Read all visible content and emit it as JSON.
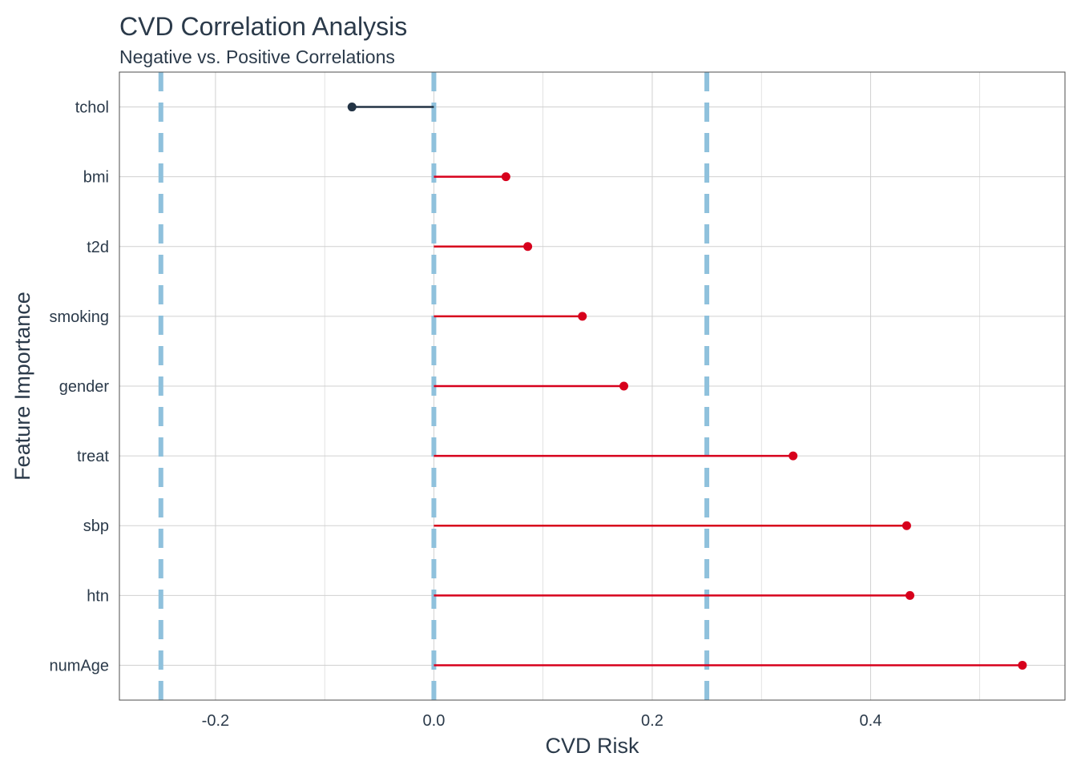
{
  "chart_data": {
    "type": "lollipop",
    "title": "CVD Correlation Analysis",
    "subtitle": "Negative vs. Positive Correlations",
    "xlabel": "CVD Risk",
    "ylabel": "Feature Importance",
    "xlim": [
      -0.288,
      0.578
    ],
    "x_ticks": [
      -0.2,
      0.0,
      0.2,
      0.4
    ],
    "x_tick_labels": [
      "-0.2",
      "0.0",
      "0.2",
      "0.4"
    ],
    "reference_lines": [
      -0.25,
      0.0,
      0.25
    ],
    "grid": true,
    "categories": [
      "tchol",
      "bmi",
      "t2d",
      "smoking",
      "gender",
      "treat",
      "sbp",
      "htn",
      "numAge"
    ],
    "values": [
      -0.075,
      0.066,
      0.086,
      0.136,
      0.174,
      0.329,
      0.433,
      0.436,
      0.539
    ],
    "colors": {
      "positive": "#d7001c",
      "negative": "#233445",
      "reference_line": "#8fc1dc",
      "grid": "#d0d0d0",
      "text": "#2b3a4a",
      "panel_border": "#4d4d4d"
    }
  }
}
